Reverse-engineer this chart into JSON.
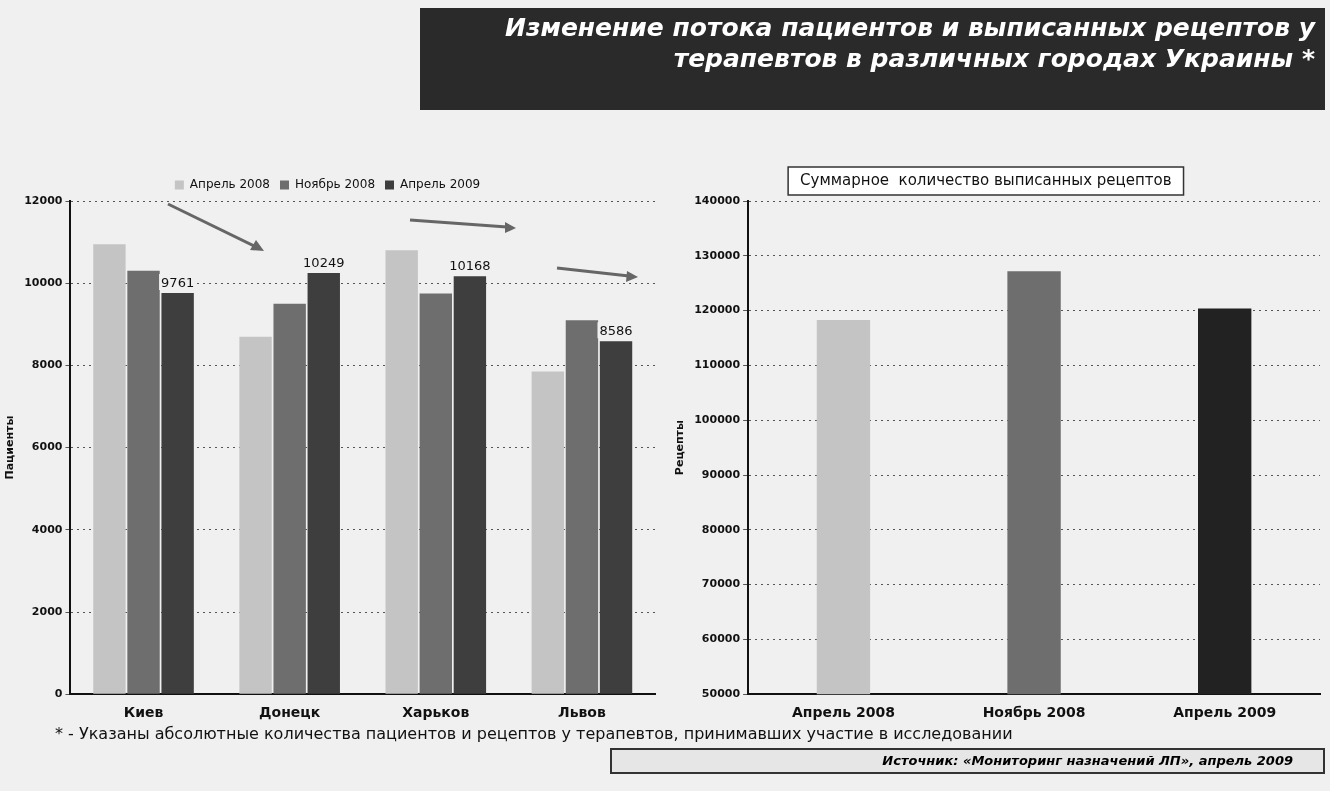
{
  "chart_data": [
    {
      "type": "bar",
      "title": "Изменение потока пациентов и выписанных рецептов у терапевтов в различных городах Украины *",
      "ylabel": "Пациенты",
      "categories": [
        "Киев",
        "Донецк",
        "Харьков",
        "Львов"
      ],
      "series": [
        {
          "name": "Апрель 2008",
          "color": "#c4c4c4",
          "values": [
            10950,
            8700,
            10800,
            7850
          ]
        },
        {
          "name": "Ноябрь 2008",
          "color": "#6e6e6e",
          "values": [
            10300,
            9500,
            9750,
            9100
          ]
        },
        {
          "name": "Апрель 2009",
          "color": "#3e3e3e",
          "values": [
            9761,
            10249,
            10168,
            8586
          ],
          "value_labels": [
            "9761",
            "10249",
            "10168",
            "8586"
          ]
        }
      ],
      "ylim": [
        0,
        12000
      ],
      "yticks": [
        0,
        2000,
        4000,
        6000,
        8000,
        10000,
        12000
      ],
      "grid": "y",
      "legend": "top",
      "annotations": [
        "* - Указаны абсолютные количества пациентов и рецептов у терапевтов, принимавших участие в исследовании"
      ]
    },
    {
      "type": "bar",
      "title": "Суммарное  количество выписанных рецептов",
      "ylabel": "Рецепты",
      "categories": [
        "Апрель 2008",
        "Ноябрь 2008",
        "Апрель 2009"
      ],
      "values": [
        118300,
        127200,
        120400
      ],
      "colors": [
        "#c4c4c4",
        "#6e6e6e",
        "#222222"
      ],
      "ylim": [
        50000,
        140000
      ],
      "yticks": [
        50000,
        60000,
        70000,
        80000,
        90000,
        100000,
        110000,
        120000,
        130000,
        140000
      ],
      "grid": "y",
      "annotations": [
        "Источник: «Мониторинг назначений ЛП», апрель 2009"
      ]
    }
  ]
}
